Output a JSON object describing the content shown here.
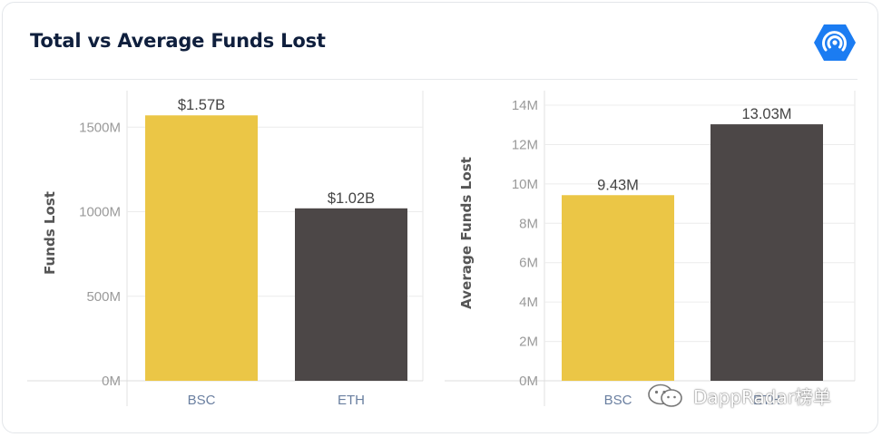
{
  "title": "Total vs Average Funds Lost",
  "logo": {
    "icon": "dappradar-logo-icon",
    "color": "#1b7cf2"
  },
  "watermark": {
    "text": "DappRadar榜单",
    "icon": "wechat-icon"
  },
  "colors": {
    "bsc": "#ebc646",
    "eth": "#4c4747",
    "grid": "#ececec",
    "tick": "#9a9a9a",
    "category": "#6a7fa0",
    "label": "#444444",
    "axis_title": "#555555"
  },
  "chart_data": [
    {
      "type": "bar",
      "title": "",
      "categories": [
        "BSC",
        "ETH"
      ],
      "values": [
        1570,
        1020
      ],
      "value_labels": [
        "$1.57B",
        "$1.02B"
      ],
      "value_unit": "M",
      "ylabel": "Funds Lost",
      "xlabel": "",
      "ylim": [
        0,
        1700
      ],
      "yticks": [
        0,
        500,
        1000,
        1500
      ],
      "ytick_labels": [
        "0M",
        "500M",
        "1000M",
        "1500M"
      ],
      "grid": true
    },
    {
      "type": "bar",
      "title": "",
      "categories": [
        "BSC",
        "ETH"
      ],
      "values": [
        9.43,
        13.03
      ],
      "value_labels": [
        "9.43M",
        "13.03M"
      ],
      "value_unit": "M",
      "ylabel": "Average Funds Lost",
      "xlabel": "",
      "ylim": [
        0,
        14.6
      ],
      "yticks": [
        0,
        2,
        4,
        6,
        8,
        10,
        12,
        14
      ],
      "ytick_labels": [
        "0M",
        "2M",
        "4M",
        "6M",
        "8M",
        "10M",
        "12M",
        "14M"
      ],
      "grid": true
    }
  ]
}
